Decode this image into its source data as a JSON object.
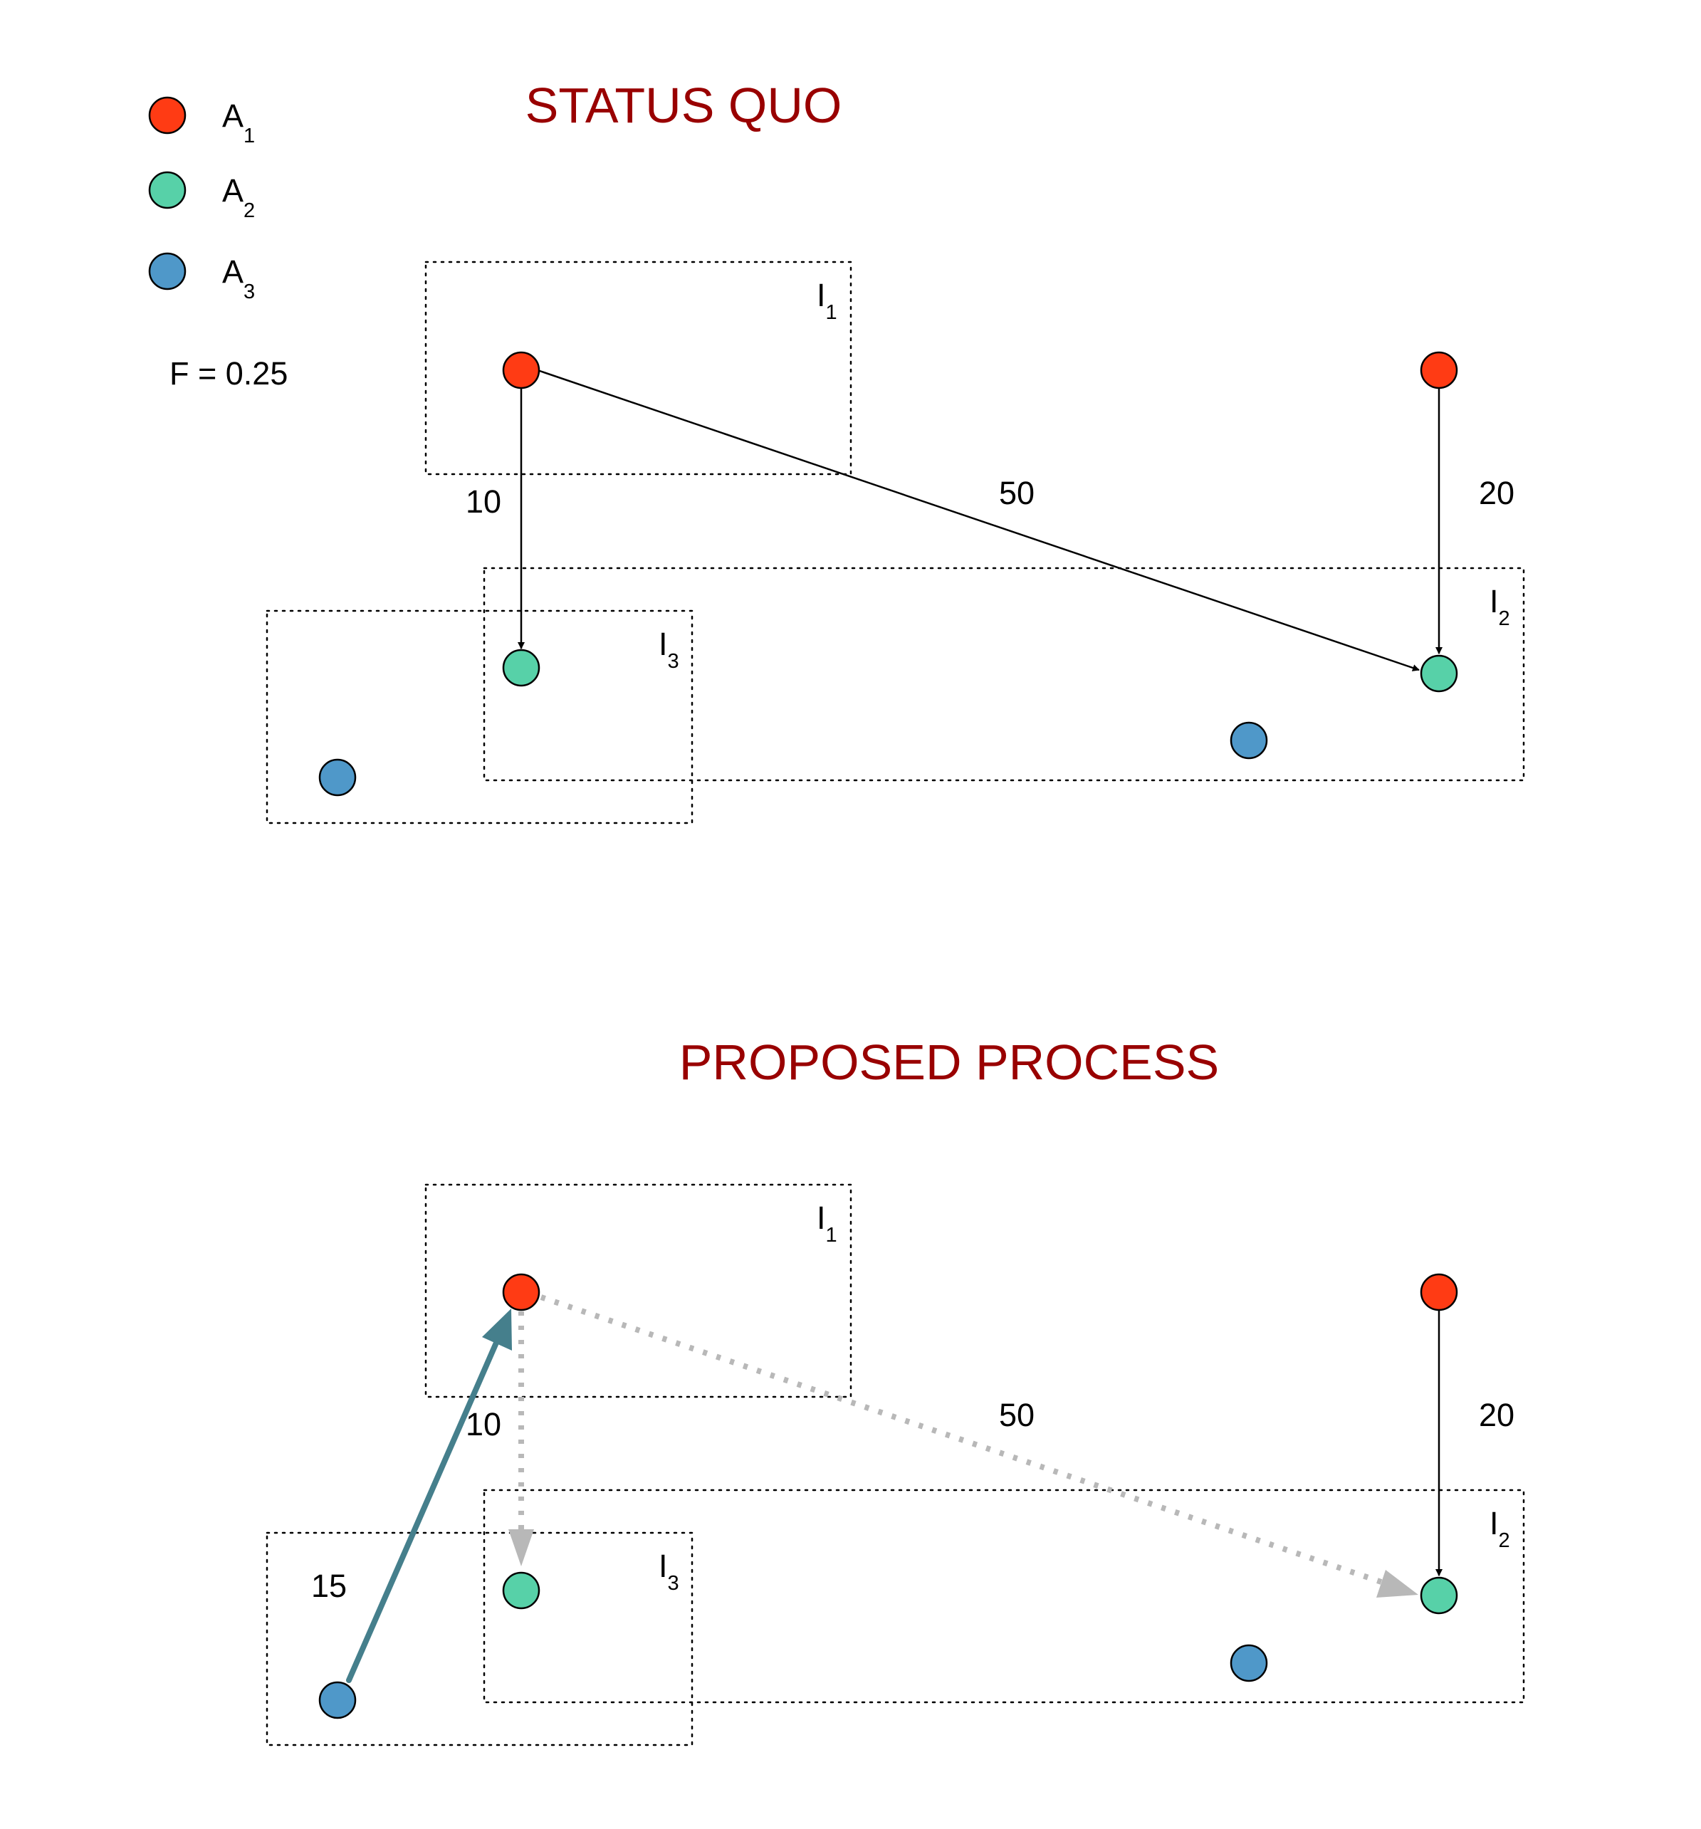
{
  "colors": {
    "title": "#990000",
    "A1": "#ff3b14",
    "A2": "#57d1a8",
    "A3": "#4f98c9",
    "arrow_solid": "#000000",
    "arrow_dotted": "#b8b8b8",
    "arrow_proposed": "#457f8c"
  },
  "legend": {
    "items": [
      {
        "letter": "A",
        "sub": "1",
        "color_key": "A1"
      },
      {
        "letter": "A",
        "sub": "2",
        "color_key": "A2"
      },
      {
        "letter": "A",
        "sub": "3",
        "color_key": "A3"
      }
    ],
    "f_value": "F = 0.25"
  },
  "status_quo": {
    "title": "STATUS QUO",
    "regions": [
      {
        "letter": "I",
        "sub": "1"
      },
      {
        "letter": "I",
        "sub": "2"
      },
      {
        "letter": "I",
        "sub": "3"
      }
    ],
    "edge_labels": [
      "10",
      "50",
      "20"
    ]
  },
  "proposed": {
    "title": "PROPOSED PROCESS",
    "regions": [
      {
        "letter": "I",
        "sub": "1"
      },
      {
        "letter": "I",
        "sub": "2"
      },
      {
        "letter": "I",
        "sub": "3"
      }
    ],
    "edge_labels": [
      "10",
      "50",
      "20",
      "15"
    ]
  }
}
